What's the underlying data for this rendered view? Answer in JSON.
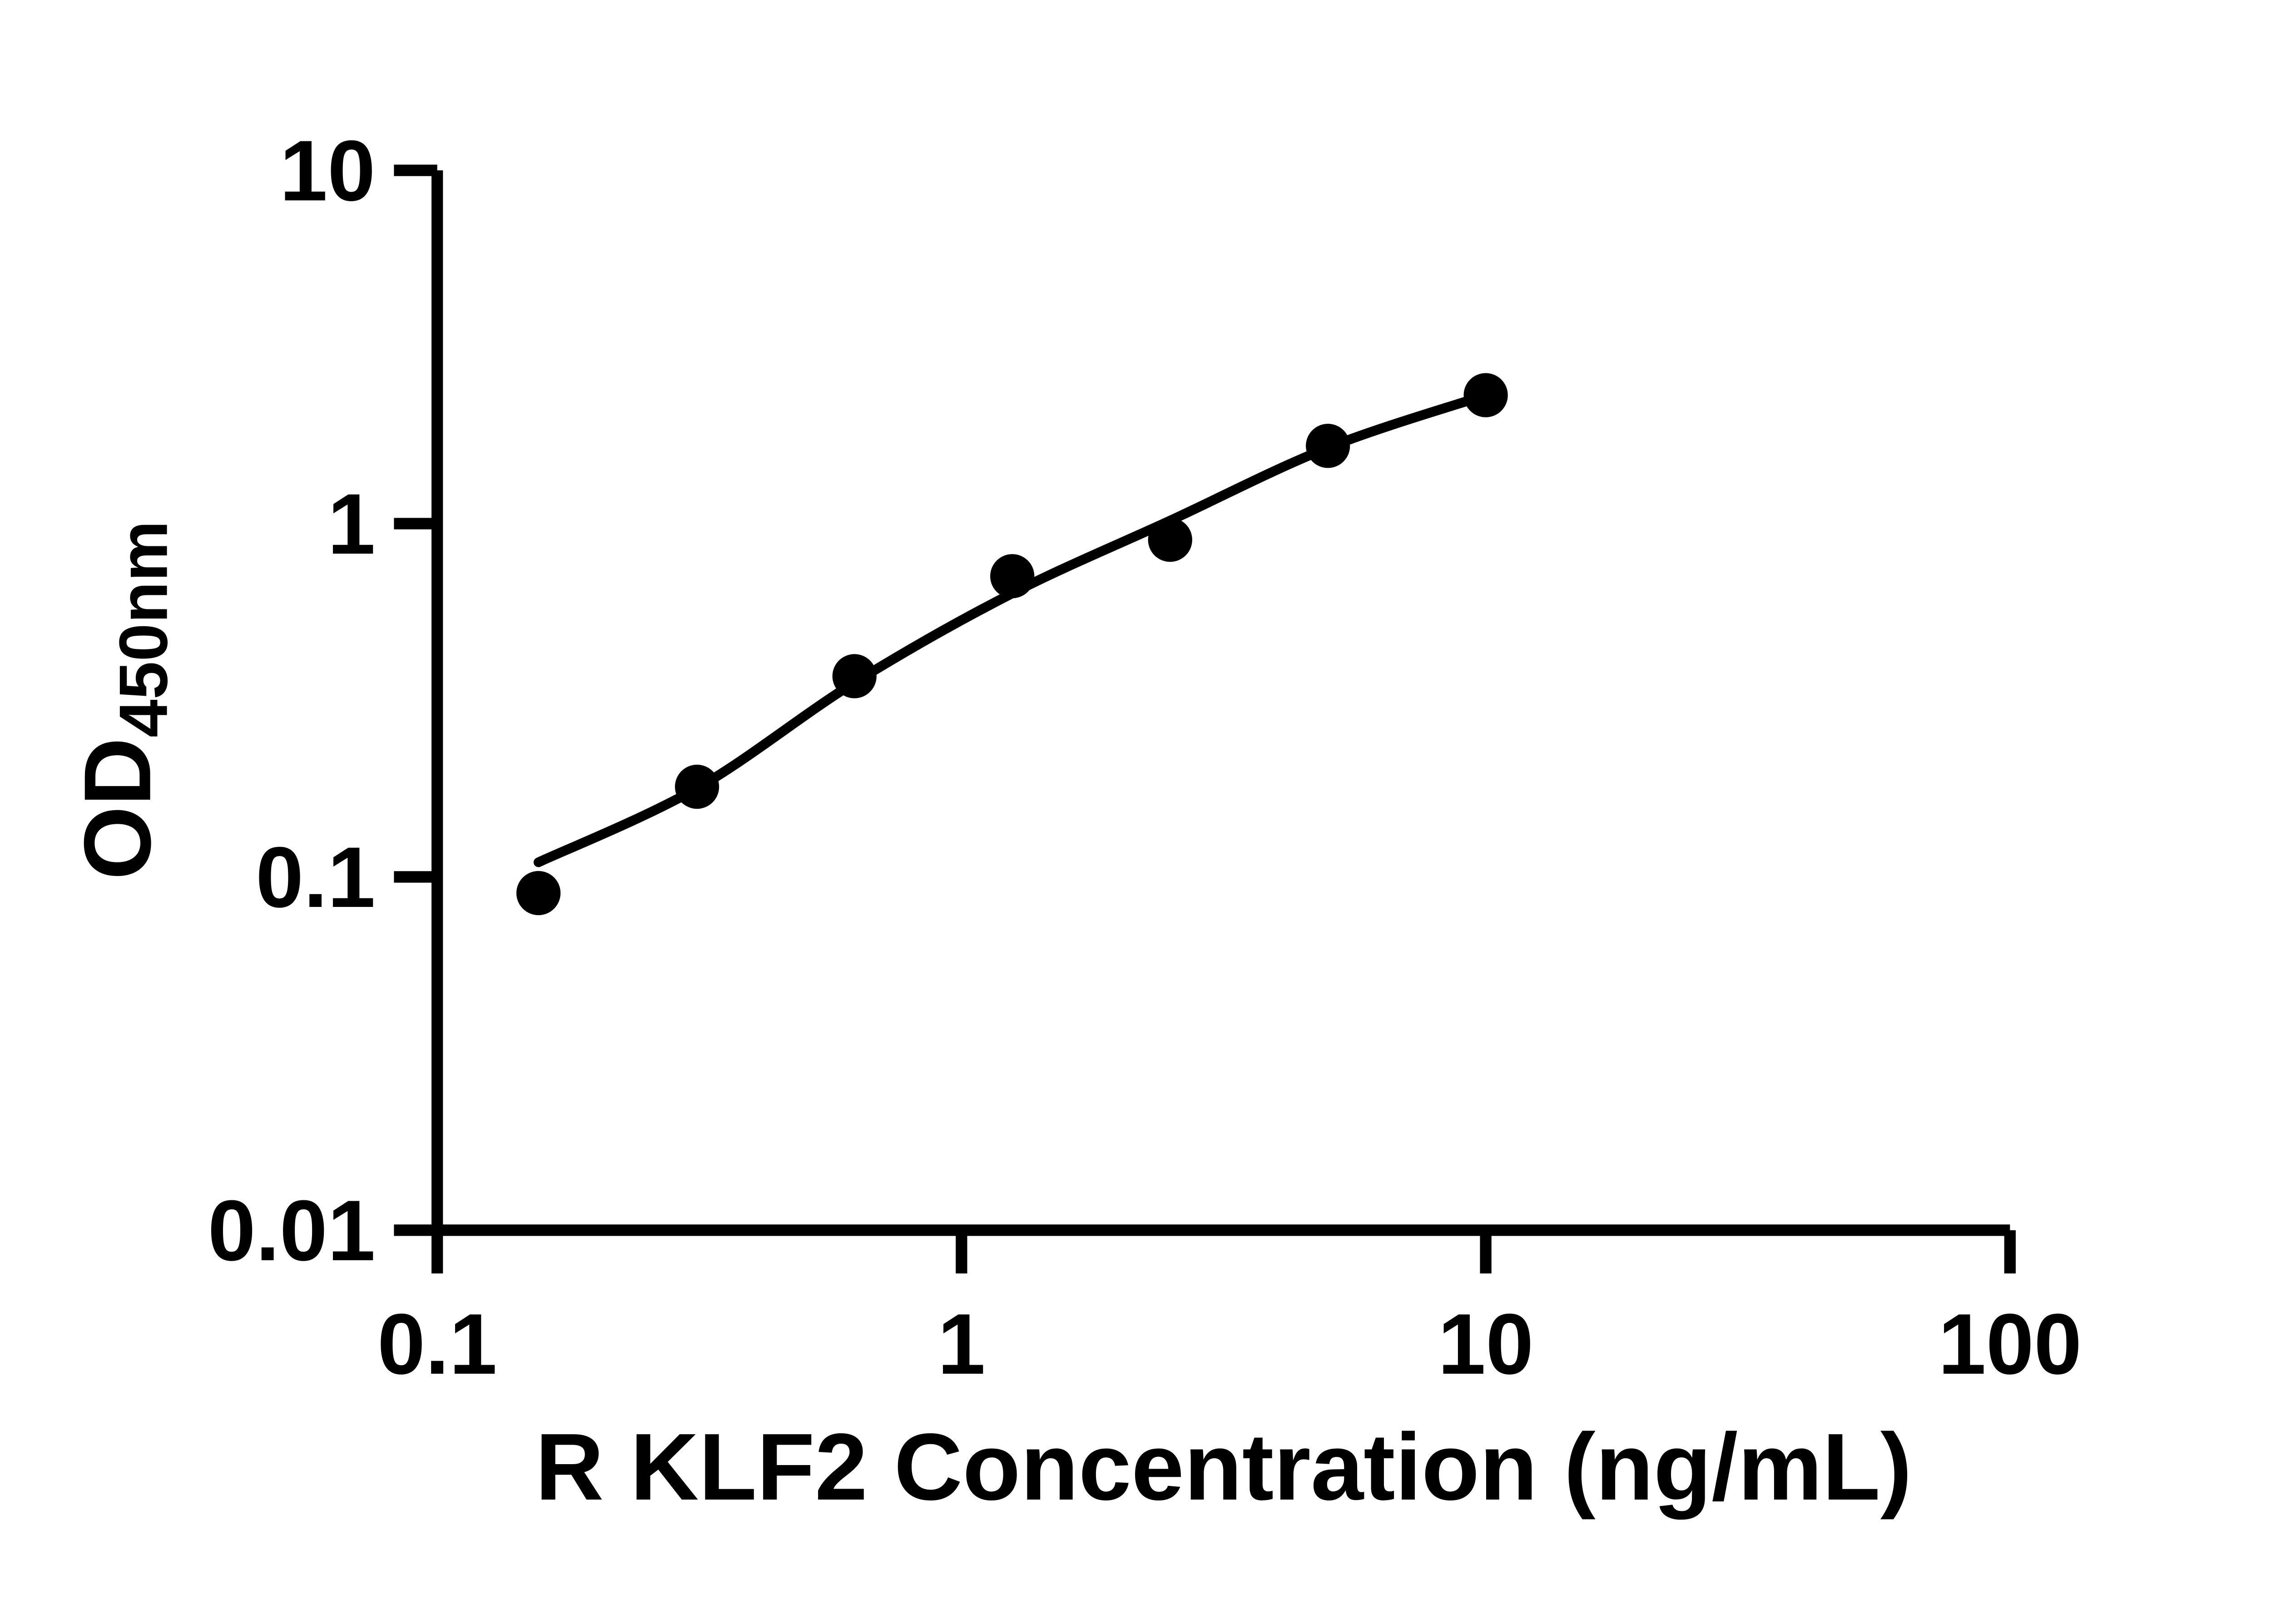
{
  "page": {
    "background": "#ffffff"
  },
  "chart_data": {
    "type": "scatter",
    "title": "",
    "xlabel": "R KLF2 Concentration (ng/mL)",
    "ylabel": "OD450nm",
    "ylabel_main": "OD",
    "ylabel_subscript": "450nm",
    "xscale": "log",
    "yscale": "log",
    "xlim": [
      0.1,
      100
    ],
    "ylim": [
      0.01,
      10
    ],
    "xticks": {
      "values": [
        0.1,
        1,
        10,
        100
      ],
      "labels": [
        "0.1",
        "1",
        "10",
        "100"
      ]
    },
    "yticks": {
      "values": [
        0.01,
        0.1,
        1,
        10
      ],
      "labels": [
        "0.01",
        "0.1",
        "1",
        "10"
      ]
    },
    "grid": false,
    "legend": false,
    "axis_color": "#000000",
    "background_color": "#ffffff",
    "series": [
      {
        "name": "standard-points",
        "marker": "filled-circle",
        "color": "#000000",
        "x": [
          0.156,
          0.313,
          0.625,
          1.25,
          2.5,
          5,
          10
        ],
        "y": [
          0.09,
          0.18,
          0.37,
          0.71,
          0.9,
          1.66,
          2.31
        ]
      }
    ],
    "fit_curve": {
      "name": "fit-curve",
      "color": "#000000",
      "x": [
        0.156,
        0.3125,
        0.625,
        1.25,
        2.5,
        5,
        10
      ],
      "y": [
        0.11,
        0.178,
        0.355,
        0.635,
        1.02,
        1.64,
        2.31
      ]
    }
  }
}
